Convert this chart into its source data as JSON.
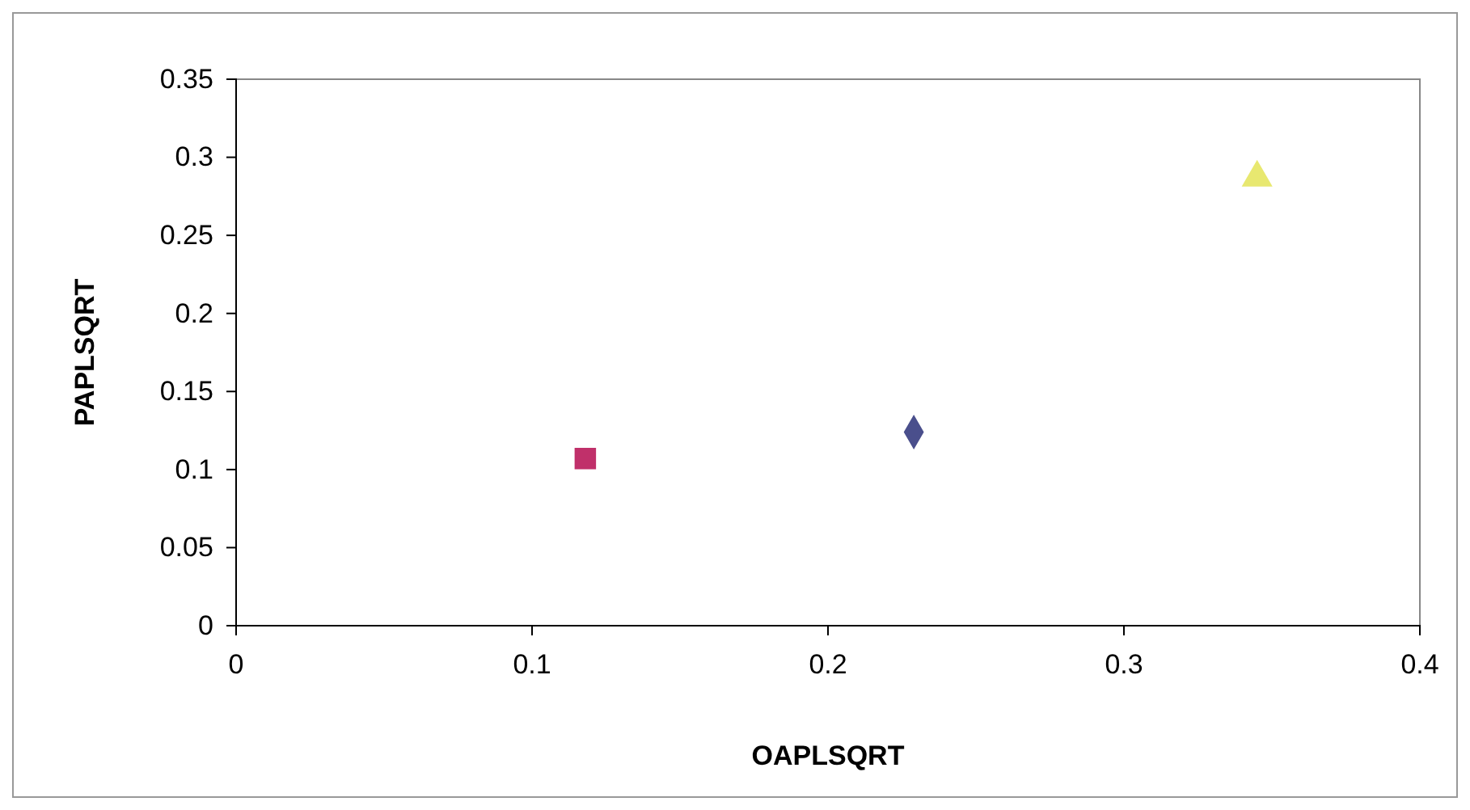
{
  "chart_data": {
    "type": "scatter",
    "xlabel": "OAPLSQRT",
    "ylabel": "PAPLSQRT",
    "xlim": [
      0,
      0.4
    ],
    "xticks": [
      0,
      0.1,
      0.2,
      0.3,
      0.4
    ],
    "ylim": [
      0,
      0.35
    ],
    "yticks": [
      0,
      0.05,
      0.1,
      0.15,
      0.2,
      0.25,
      0.3,
      0.35
    ],
    "grid": false,
    "series": [
      {
        "x": [
          0.229
        ],
        "values": [
          0.124
        ],
        "color": "#4a4f8c",
        "marker": "diamond"
      },
      {
        "x": [
          0.118
        ],
        "values": [
          0.107
        ],
        "color": "#c0306a",
        "marker": "square"
      },
      {
        "x": [
          0.345
        ],
        "values": [
          0.287
        ],
        "color": "#e8e870",
        "marker": "triangle"
      }
    ]
  }
}
